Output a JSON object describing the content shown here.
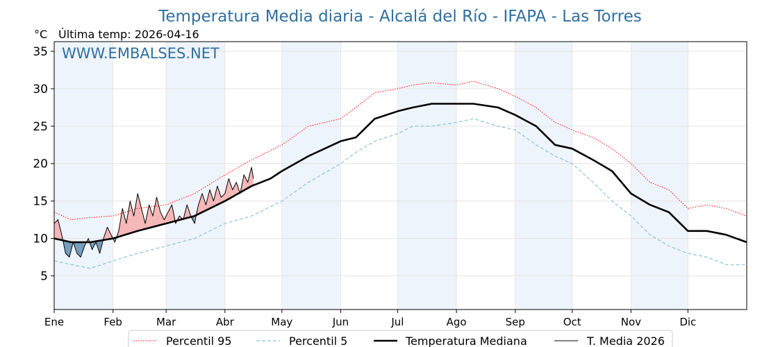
{
  "title": "Temperatura Media diaria - Alcalá del Río - IFAPA - Las Torres",
  "unit_label": "°C",
  "last_temp_label": "Última temp: 2026-04-16",
  "watermark": "WWW.EMBALSES.NET",
  "colors": {
    "p95": "#ff0000",
    "p5": "#87c4d6",
    "median": "#000000",
    "current": "#000000",
    "above_fill": "#f4aaaa",
    "below_fill": "#4a7fa8",
    "month_band": "#eef4fb",
    "title": "#2f6f9f"
  },
  "chart_data": {
    "type": "line",
    "xlabel": "",
    "ylabel": "°C",
    "ylim": [
      0.5,
      36.3
    ],
    "xlim": [
      1,
      366
    ],
    "yticks": [
      5,
      10,
      15,
      20,
      25,
      30,
      35
    ],
    "grid": true,
    "legend_position": "bottom",
    "months": [
      {
        "label": "Ene",
        "day": 1
      },
      {
        "label": "Feb",
        "day": 32
      },
      {
        "label": "Mar",
        "day": 60
      },
      {
        "label": "Abr",
        "day": 91
      },
      {
        "label": "May",
        "day": 121
      },
      {
        "label": "Jun",
        "day": 152
      },
      {
        "label": "Jul",
        "day": 182
      },
      {
        "label": "Ago",
        "day": 213
      },
      {
        "label": "Sep",
        "day": 244
      },
      {
        "label": "Oct",
        "day": 274
      },
      {
        "label": "Nov",
        "day": 305
      },
      {
        "label": "Dic",
        "day": 335
      }
    ],
    "series": [
      {
        "name": "Percentil 95",
        "style": "dotted-red",
        "points": [
          [
            1,
            13.5
          ],
          [
            10,
            12.5
          ],
          [
            20,
            12.8
          ],
          [
            32,
            13.0
          ],
          [
            45,
            14.0
          ],
          [
            60,
            14.5
          ],
          [
            75,
            16.0
          ],
          [
            91,
            18.5
          ],
          [
            105,
            20.5
          ],
          [
            121,
            22.5
          ],
          [
            135,
            25.0
          ],
          [
            152,
            26.0
          ],
          [
            160,
            27.5
          ],
          [
            170,
            29.5
          ],
          [
            182,
            30.0
          ],
          [
            190,
            30.5
          ],
          [
            200,
            30.8
          ],
          [
            213,
            30.5
          ],
          [
            222,
            31.0
          ],
          [
            235,
            30.0
          ],
          [
            244,
            29.0
          ],
          [
            255,
            27.5
          ],
          [
            265,
            25.5
          ],
          [
            274,
            24.5
          ],
          [
            285,
            23.5
          ],
          [
            295,
            22.0
          ],
          [
            305,
            20.0
          ],
          [
            315,
            17.5
          ],
          [
            325,
            16.5
          ],
          [
            335,
            14.0
          ],
          [
            345,
            14.5
          ],
          [
            355,
            14.0
          ],
          [
            366,
            13.0
          ]
        ]
      },
      {
        "name": "Percentil 5",
        "style": "dashed-lightblue",
        "points": [
          [
            1,
            7.0
          ],
          [
            10,
            6.5
          ],
          [
            20,
            6.0
          ],
          [
            32,
            7.0
          ],
          [
            45,
            8.0
          ],
          [
            60,
            9.0
          ],
          [
            75,
            10.0
          ],
          [
            91,
            12.0
          ],
          [
            105,
            13.0
          ],
          [
            121,
            15.0
          ],
          [
            135,
            17.5
          ],
          [
            152,
            20.0
          ],
          [
            160,
            21.5
          ],
          [
            170,
            23.0
          ],
          [
            182,
            24.0
          ],
          [
            190,
            25.0
          ],
          [
            200,
            25.0
          ],
          [
            213,
            25.5
          ],
          [
            222,
            26.0
          ],
          [
            235,
            25.0
          ],
          [
            244,
            24.5
          ],
          [
            255,
            22.5
          ],
          [
            265,
            21.0
          ],
          [
            274,
            20.0
          ],
          [
            285,
            17.5
          ],
          [
            295,
            15.0
          ],
          [
            305,
            13.0
          ],
          [
            315,
            10.5
          ],
          [
            325,
            9.0
          ],
          [
            335,
            8.0
          ],
          [
            345,
            7.5
          ],
          [
            355,
            6.5
          ],
          [
            366,
            6.5
          ]
        ]
      },
      {
        "name": "Temperatura Mediana",
        "style": "solid-thick",
        "points": [
          [
            1,
            10.0
          ],
          [
            10,
            9.5
          ],
          [
            20,
            9.5
          ],
          [
            32,
            10.0
          ],
          [
            45,
            11.0
          ],
          [
            60,
            12.0
          ],
          [
            75,
            13.0
          ],
          [
            91,
            15.0
          ],
          [
            105,
            17.0
          ],
          [
            115,
            18.0
          ],
          [
            121,
            19.0
          ],
          [
            135,
            21.0
          ],
          [
            152,
            23.0
          ],
          [
            160,
            23.5
          ],
          [
            170,
            26.0
          ],
          [
            182,
            27.0
          ],
          [
            190,
            27.5
          ],
          [
            200,
            28.0
          ],
          [
            213,
            28.0
          ],
          [
            222,
            28.0
          ],
          [
            235,
            27.5
          ],
          [
            244,
            26.5
          ],
          [
            255,
            25.0
          ],
          [
            265,
            22.5
          ],
          [
            274,
            22.0
          ],
          [
            285,
            20.5
          ],
          [
            295,
            19.0
          ],
          [
            305,
            16.0
          ],
          [
            315,
            14.5
          ],
          [
            325,
            13.5
          ],
          [
            335,
            11.0
          ],
          [
            345,
            11.0
          ],
          [
            355,
            10.5
          ],
          [
            366,
            9.5
          ]
        ]
      },
      {
        "name": "T. Media 2026",
        "style": "solid-thin",
        "points": [
          [
            1,
            12.0
          ],
          [
            3,
            12.5
          ],
          [
            5,
            10.5
          ],
          [
            7,
            8.0
          ],
          [
            9,
            7.5
          ],
          [
            11,
            9.5
          ],
          [
            13,
            8.0
          ],
          [
            15,
            7.5
          ],
          [
            17,
            9.0
          ],
          [
            19,
            10.0
          ],
          [
            21,
            8.5
          ],
          [
            23,
            9.5
          ],
          [
            25,
            8.0
          ],
          [
            27,
            10.0
          ],
          [
            29,
            11.5
          ],
          [
            31,
            10.5
          ],
          [
            33,
            9.5
          ],
          [
            35,
            11.0
          ],
          [
            37,
            14.0
          ],
          [
            39,
            12.0
          ],
          [
            41,
            15.0
          ],
          [
            43,
            13.0
          ],
          [
            45,
            16.0
          ],
          [
            47,
            14.0
          ],
          [
            49,
            12.0
          ],
          [
            51,
            14.5
          ],
          [
            53,
            13.0
          ],
          [
            55,
            15.5
          ],
          [
            57,
            13.5
          ],
          [
            59,
            12.5
          ],
          [
            61,
            13.5
          ],
          [
            63,
            14.5
          ],
          [
            65,
            12.0
          ],
          [
            67,
            13.0
          ],
          [
            69,
            12.5
          ],
          [
            71,
            14.5
          ],
          [
            73,
            13.0
          ],
          [
            75,
            12.0
          ],
          [
            77,
            14.5
          ],
          [
            79,
            16.0
          ],
          [
            81,
            14.5
          ],
          [
            83,
            16.5
          ],
          [
            85,
            15.0
          ],
          [
            87,
            17.0
          ],
          [
            89,
            15.5
          ],
          [
            91,
            16.0
          ],
          [
            93,
            18.0
          ],
          [
            95,
            16.5
          ],
          [
            97,
            17.5
          ],
          [
            99,
            16.0
          ],
          [
            101,
            18.5
          ],
          [
            103,
            17.5
          ],
          [
            105,
            19.5
          ],
          [
            106,
            18.0
          ]
        ]
      }
    ],
    "legend": [
      "Percentil 95",
      "Percentil 5",
      "Temperatura Mediana",
      "T. Media 2026"
    ]
  }
}
